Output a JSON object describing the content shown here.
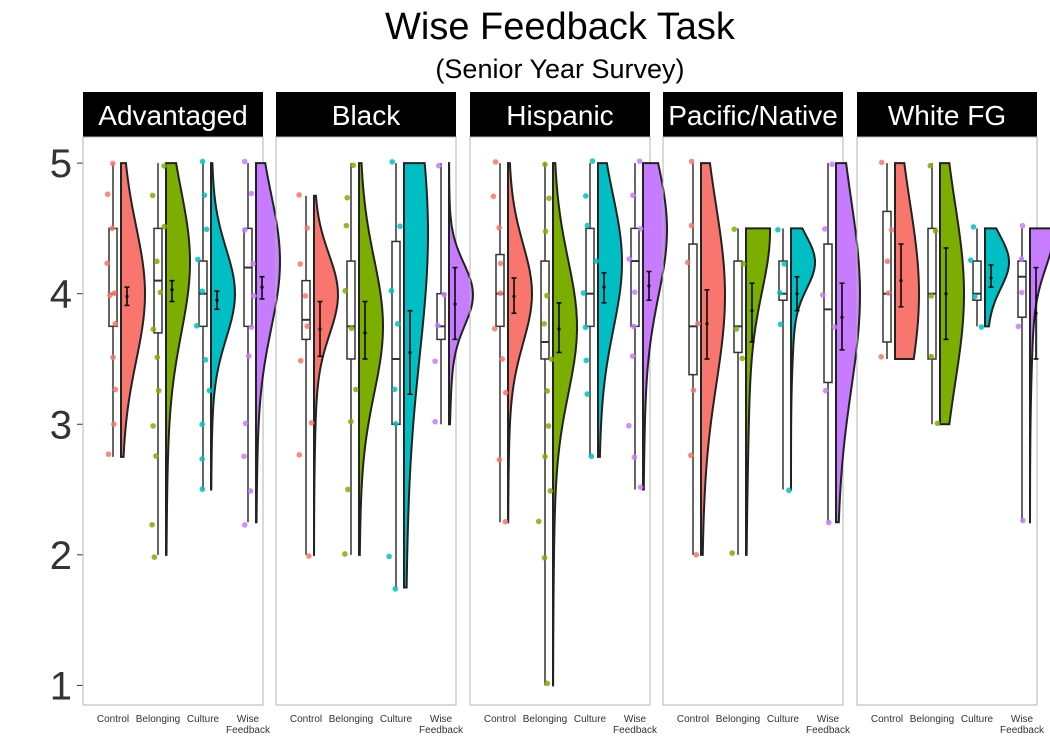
{
  "chart_data": {
    "type": "raincloud",
    "title": "Wise Feedback Task",
    "subtitle": "(Senior Year Survey)",
    "xlabel": "",
    "ylabel": "",
    "ylim": [
      0.85,
      5.2
    ],
    "y_ticks": [
      1,
      2,
      3,
      4,
      5
    ],
    "grid": false,
    "legend": "none",
    "conditions": [
      "Control",
      "Belonging",
      "Culture",
      "Wise Feedback"
    ],
    "condition_tick_labels": [
      [
        "Control"
      ],
      [
        "Belonging"
      ],
      [
        "Culture"
      ],
      [
        "Wise",
        "Feedback"
      ]
    ],
    "colors": {
      "Control": "#F8766D",
      "Belonging": "#7CAE00",
      "Culture": "#00BFC4",
      "Wise Feedback": "#C77CFF"
    },
    "panels": [
      {
        "name": "Advantaged",
        "groups": [
          {
            "condition": "Control",
            "min": 2.75,
            "q1": 3.75,
            "median": 4.0,
            "q3": 4.5,
            "max": 5.0,
            "mean": 3.98,
            "ci": [
              3.91,
              4.05
            ],
            "density_peak": 4.0,
            "points": [
              5.0,
              4.75,
              4.5,
              4.25,
              4.0,
              4.0,
              3.75,
              3.5,
              3.25,
              3.0,
              2.75
            ]
          },
          {
            "condition": "Belonging",
            "min": 2.0,
            "q1": 3.7,
            "median": 4.1,
            "q3": 4.5,
            "max": 5.0,
            "mean": 4.03,
            "ci": [
              3.94,
              4.1
            ],
            "density_peak": 4.25,
            "points": [
              5.0,
              4.75,
              4.5,
              4.25,
              4.0,
              3.75,
              3.5,
              3.25,
              3.0,
              2.75,
              2.25,
              2.0
            ]
          },
          {
            "condition": "Culture",
            "min": 2.5,
            "q1": 3.75,
            "median": 4.0,
            "q3": 4.25,
            "max": 5.0,
            "mean": 3.95,
            "ci": [
              3.88,
              4.02
            ],
            "density_peak": 4.0,
            "points": [
              5.0,
              4.75,
              4.5,
              4.25,
              4.0,
              3.75,
              3.5,
              3.25,
              3.0,
              2.75,
              2.5
            ]
          },
          {
            "condition": "Wise Feedback",
            "min": 2.25,
            "q1": 3.75,
            "median": 4.2,
            "q3": 4.5,
            "max": 5.0,
            "mean": 4.05,
            "ci": [
              3.96,
              4.13
            ],
            "density_peak": 4.25,
            "points": [
              5.0,
              4.75,
              4.5,
              4.25,
              4.0,
              3.75,
              3.5,
              3.0,
              2.75,
              2.5,
              2.25
            ]
          }
        ]
      },
      {
        "name": "Black",
        "groups": [
          {
            "condition": "Control",
            "min": 2.0,
            "q1": 3.65,
            "median": 3.8,
            "q3": 4.1,
            "max": 4.75,
            "mean": 3.73,
            "ci": [
              3.52,
              3.94
            ],
            "density_peak": 4.0,
            "points": [
              4.75,
              4.5,
              4.25,
              4.0,
              3.75,
              3.5,
              3.0,
              2.75,
              2.0
            ]
          },
          {
            "condition": "Belonging",
            "min": 2.0,
            "q1": 3.5,
            "median": 3.75,
            "q3": 4.25,
            "max": 5.0,
            "mean": 3.7,
            "ci": [
              3.5,
              3.94
            ],
            "density_peak": 3.75,
            "points": [
              5.0,
              4.75,
              4.5,
              4.0,
              3.75,
              3.25,
              3.0,
              2.5,
              2.0
            ]
          },
          {
            "condition": "Culture",
            "min": 1.75,
            "q1": 3.0,
            "median": 3.5,
            "q3": 4.4,
            "max": 5.0,
            "mean": 3.55,
            "ci": [
              3.23,
              3.87
            ],
            "density_peak": 4.5,
            "points": [
              5.0,
              4.5,
              4.0,
              3.75,
              3.25,
              3.0,
              2.0,
              1.75
            ]
          },
          {
            "condition": "Wise Feedback",
            "min": 3.0,
            "q1": 3.65,
            "median": 3.75,
            "q3": 4.0,
            "max": 5.0,
            "mean": 3.92,
            "ci": [
              3.65,
              4.2
            ],
            "density_peak": 4.0,
            "points": [
              5.0,
              4.0,
              3.75,
              3.5,
              3.0
            ]
          }
        ]
      },
      {
        "name": "Hispanic",
        "groups": [
          {
            "condition": "Control",
            "min": 2.25,
            "q1": 3.75,
            "median": 4.0,
            "q3": 4.3,
            "max": 5.0,
            "mean": 3.98,
            "ci": [
              3.85,
              4.12
            ],
            "density_peak": 4.0,
            "points": [
              5.0,
              4.75,
              4.5,
              4.25,
              4.0,
              3.75,
              3.5,
              3.25,
              2.75,
              2.25
            ]
          },
          {
            "condition": "Belonging",
            "min": 1.0,
            "q1": 3.5,
            "median": 3.63,
            "q3": 4.25,
            "max": 5.0,
            "mean": 3.73,
            "ci": [
              3.55,
              3.93
            ],
            "density_peak": 3.75,
            "points": [
              5.0,
              4.75,
              4.5,
              4.0,
              3.75,
              3.5,
              3.25,
              3.0,
              2.75,
              2.5,
              2.25,
              2.0,
              1.0
            ]
          },
          {
            "condition": "Culture",
            "min": 2.75,
            "q1": 3.75,
            "median": 4.0,
            "q3": 4.5,
            "max": 5.0,
            "mean": 4.05,
            "ci": [
              3.93,
              4.16
            ],
            "density_peak": 4.25,
            "points": [
              5.0,
              4.75,
              4.5,
              4.25,
              4.0,
              3.75,
              3.5,
              3.25,
              2.75
            ]
          },
          {
            "condition": "Wise Feedback",
            "min": 2.5,
            "q1": 3.75,
            "median": 4.25,
            "q3": 4.5,
            "max": 5.0,
            "mean": 4.06,
            "ci": [
              3.95,
              4.17
            ],
            "density_peak": 4.5,
            "points": [
              5.0,
              4.75,
              4.5,
              4.25,
              4.0,
              3.75,
              3.5,
              3.0,
              2.75,
              2.5
            ]
          }
        ]
      },
      {
        "name": "Pacific/Native",
        "groups": [
          {
            "condition": "Control",
            "min": 2.0,
            "q1": 3.38,
            "median": 3.75,
            "q3": 4.38,
            "max": 5.0,
            "mean": 3.77,
            "ci": [
              3.5,
              4.03
            ],
            "density_peak": 4.0,
            "points": [
              5.0,
              4.5,
              4.25,
              3.75,
              3.25,
              2.75,
              2.0
            ]
          },
          {
            "condition": "Belonging",
            "min": 2.0,
            "q1": 3.55,
            "median": 3.75,
            "q3": 4.25,
            "max": 4.5,
            "mean": 3.87,
            "ci": [
              3.63,
              4.08
            ],
            "density_peak": 4.5,
            "points": [
              4.5,
              4.25,
              3.75,
              3.5,
              2.0
            ]
          },
          {
            "condition": "Culture",
            "min": 2.5,
            "q1": 3.95,
            "median": 4.0,
            "q3": 4.25,
            "max": 4.5,
            "mean": 4.0,
            "ci": [
              3.87,
              4.13
            ],
            "density_peak": 4.25,
            "points": [
              4.5,
              4.25,
              4.0,
              3.75,
              2.5
            ]
          },
          {
            "condition": "Wise Feedback",
            "min": 2.25,
            "q1": 3.32,
            "median": 3.88,
            "q3": 4.38,
            "max": 5.0,
            "mean": 3.82,
            "ci": [
              3.57,
              4.08
            ],
            "density_peak": 4.0,
            "points": [
              5.0,
              4.5,
              4.0,
              3.75,
              3.25,
              2.25
            ]
          }
        ]
      },
      {
        "name": "White FG",
        "groups": [
          {
            "condition": "Control",
            "min": 3.5,
            "q1": 3.63,
            "median": 4.0,
            "q3": 4.63,
            "max": 5.0,
            "mean": 4.1,
            "ci": [
              3.9,
              4.38
            ],
            "density_peak": 4.0,
            "points": [
              5.0,
              4.5,
              4.25,
              4.0,
              3.5
            ]
          },
          {
            "condition": "Belonging",
            "min": 3.0,
            "q1": 3.5,
            "median": 4.0,
            "q3": 4.5,
            "max": 5.0,
            "mean": 4.0,
            "ci": [
              3.65,
              4.35
            ],
            "density_peak": 4.0,
            "points": [
              5.0,
              4.5,
              4.0,
              3.5,
              3.0
            ]
          },
          {
            "condition": "Culture",
            "min": 3.75,
            "q1": 3.95,
            "median": 4.0,
            "q3": 4.25,
            "max": 4.5,
            "mean": 4.12,
            "ci": [
              4.05,
              4.22
            ],
            "density_peak": 4.25,
            "points": [
              4.5,
              4.25,
              4.0,
              3.75
            ]
          },
          {
            "condition": "Wise Feedback",
            "min": 2.25,
            "q1": 3.82,
            "median": 4.13,
            "q3": 4.25,
            "max": 4.5,
            "mean": 3.85,
            "ci": [
              3.5,
              4.2
            ],
            "density_peak": 4.5,
            "points": [
              4.5,
              4.25,
              4.0,
              3.75,
              2.25
            ]
          }
        ]
      }
    ]
  }
}
